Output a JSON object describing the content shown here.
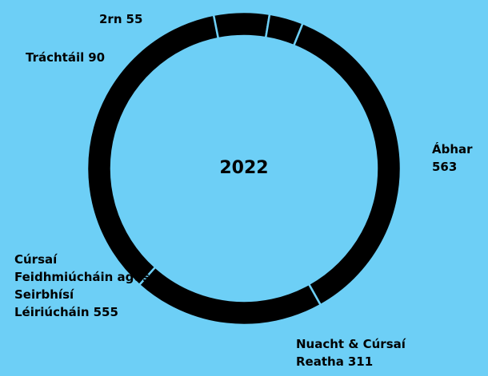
{
  "chart_data": {
    "type": "pie",
    "title": "2022",
    "categories": [
      "Ábhar",
      "Nuacht & Cúrsaí Reatha",
      "Cúrsaí Feidhmiúcháin agus Seirbhísí Léiriúcháin",
      "Tráchtáil",
      "2rn"
    ],
    "values": [
      563,
      311,
      555,
      90,
      55
    ],
    "color": "#000000"
  }
}
